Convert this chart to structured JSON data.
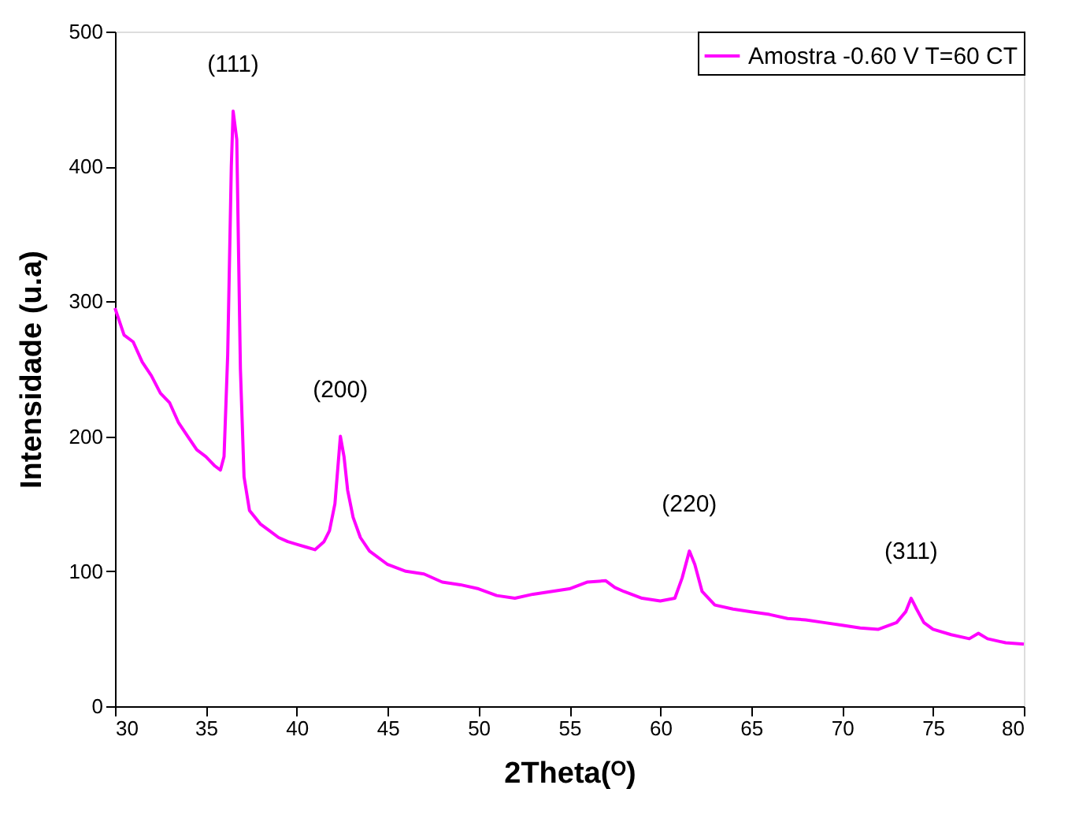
{
  "chart_data": {
    "type": "line",
    "xlabel": "2Theta(ᴼ)",
    "ylabel": "Intensidade (u.a)",
    "xlim": [
      30,
      80
    ],
    "xticks": [
      30,
      35,
      40,
      45,
      50,
      55,
      60,
      65,
      70,
      75,
      80
    ],
    "ylim": [
      0,
      500
    ],
    "yticks": [
      0,
      100,
      200,
      300,
      400,
      500
    ],
    "grid": false,
    "legend": "top right",
    "marker": "none",
    "line_style": "solid",
    "series": [
      {
        "name": "Amostra -0.60 V T=60 CT",
        "color": "#ff00ff",
        "x": [
          30,
          30.5,
          31,
          31.5,
          32,
          32.5,
          33,
          33.5,
          34,
          34.5,
          35,
          35.5,
          35.8,
          36.0,
          36.2,
          36.4,
          36.5,
          36.7,
          36.9,
          37.1,
          37.4,
          38,
          38.5,
          39,
          39.5,
          40,
          40.5,
          41,
          41.5,
          41.8,
          42.1,
          42.4,
          42.6,
          42.8,
          43.1,
          43.5,
          44,
          45,
          46,
          47,
          48,
          49,
          50,
          51,
          52,
          53,
          54,
          55,
          56,
          57,
          57.5,
          58,
          59,
          60,
          60.8,
          61.2,
          61.6,
          61.9,
          62.3,
          63,
          64,
          65,
          66,
          67,
          68,
          69,
          70,
          71,
          72,
          73,
          73.5,
          73.8,
          74.1,
          74.5,
          75,
          76,
          77,
          77.5,
          78,
          79,
          80
        ],
        "values": [
          295,
          275,
          270,
          255,
          245,
          232,
          225,
          210,
          200,
          190,
          185,
          178,
          175,
          185,
          260,
          400,
          441,
          420,
          250,
          170,
          145,
          135,
          130,
          125,
          122,
          120,
          118,
          116,
          122,
          130,
          150,
          200,
          185,
          160,
          140,
          125,
          115,
          105,
          100,
          98,
          92,
          90,
          87,
          82,
          80,
          83,
          85,
          87,
          92,
          93,
          88,
          85,
          80,
          78,
          80,
          95,
          115,
          105,
          85,
          75,
          72,
          70,
          68,
          65,
          64,
          62,
          60,
          58,
          57,
          62,
          70,
          80,
          72,
          62,
          57,
          53,
          50,
          54,
          50,
          47,
          46
        ]
      }
    ],
    "annotations": [
      {
        "text": "(111)",
        "x": 36.5,
        "y": 441
      },
      {
        "text": "(200)",
        "x": 42.4,
        "y": 200
      },
      {
        "text": "(220)",
        "x": 61.6,
        "y": 115
      },
      {
        "text": "(311)",
        "x": 73.8,
        "y": 80
      }
    ]
  }
}
